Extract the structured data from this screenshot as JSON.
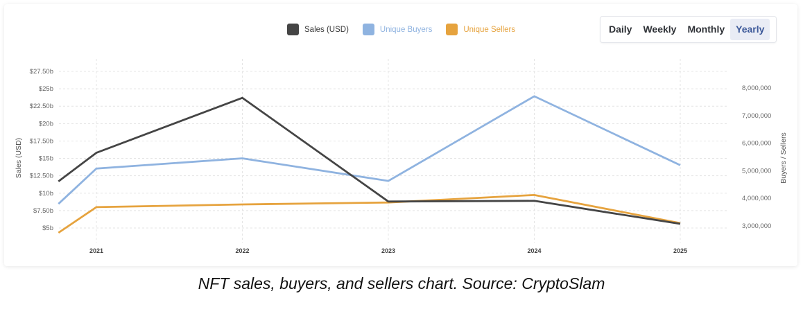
{
  "legend": [
    {
      "label": "Sales (USD)",
      "color": "#454545",
      "label_color": "#3a3a3a"
    },
    {
      "label": "Unique Buyers",
      "color": "#8fb3e0",
      "label_color": "#8fb3e0"
    },
    {
      "label": "Unique Sellers",
      "color": "#e6a33e",
      "label_color": "#e6a33e"
    }
  ],
  "period_selector": {
    "options": [
      "Daily",
      "Weekly",
      "Monthly",
      "Yearly"
    ],
    "selected": "Yearly"
  },
  "caption": "NFT sales, buyers, and sellers chart. Source: CryptoSlam",
  "chart_data": {
    "type": "line",
    "title": "",
    "x": [
      "2020.74",
      "2021",
      "2022",
      "2023",
      "2024",
      "2025"
    ],
    "x_values": [
      2020.74,
      2021,
      2022,
      2023,
      2024,
      2025
    ],
    "xticks": [
      "2021",
      "2022",
      "2023",
      "2024",
      "2025"
    ],
    "xlabel": "",
    "y_left": {
      "label": "Sales (USD)",
      "ticks": [
        "$5b",
        "$7.50b",
        "$10b",
        "$12.50b",
        "$15b",
        "$17.50b",
        "$20b",
        "$22.50b",
        "$25b",
        "$27.50b"
      ],
      "tick_values": [
        5,
        7.5,
        10,
        12.5,
        15,
        17.5,
        20,
        22.5,
        25,
        27.5
      ],
      "unit": "billion USD",
      "range": [
        4.0,
        28.0
      ]
    },
    "y_right": {
      "label": "Buyers / Sellers",
      "ticks": [
        "3,000,000",
        "4,000,000",
        "5,000,000",
        "6,000,000",
        "7,000,000",
        "8,000,000"
      ],
      "tick_values": [
        3000000,
        4000000,
        5000000,
        6000000,
        7000000,
        8000000
      ],
      "range": [
        2600000,
        8600000
      ]
    },
    "series": [
      {
        "name": "Sales (USD)",
        "axis": "left",
        "color": "#454545",
        "values": [
          11.7,
          15.8,
          23.7,
          8.8,
          8.9,
          5.6
        ]
      },
      {
        "name": "Unique Buyers",
        "axis": "right",
        "color": "#8fb3e0",
        "values": [
          3800000,
          5080000,
          5450000,
          4630000,
          7700000,
          5200000
        ]
      },
      {
        "name": "Unique Sellers",
        "axis": "right",
        "color": "#e6a33e",
        "values": [
          2750000,
          3680000,
          3780000,
          3850000,
          4120000,
          3100000
        ]
      }
    ],
    "grid": true,
    "legend_position": "top-center"
  }
}
